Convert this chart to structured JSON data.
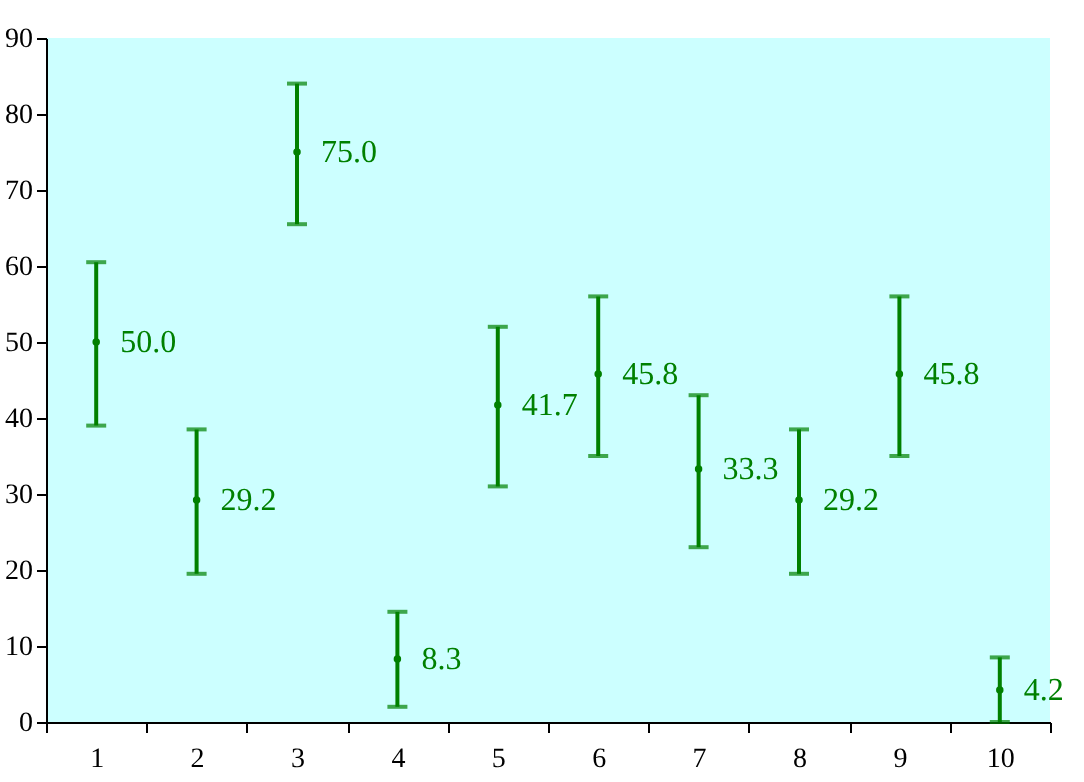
{
  "chart_data": {
    "type": "scatter",
    "categories": [
      "1",
      "2",
      "3",
      "4",
      "5",
      "6",
      "7",
      "8",
      "9",
      "10"
    ],
    "series": [
      {
        "color": "#008000",
        "values": [
          50.0,
          29.2,
          75.0,
          8.3,
          41.7,
          45.8,
          33.3,
          29.2,
          45.8,
          4.2
        ],
        "errors": [
          [
            39,
            60.5
          ],
          [
            19.5,
            38.5
          ],
          [
            65.5,
            84
          ],
          [
            2,
            14.5
          ],
          [
            31,
            52
          ],
          [
            35,
            56
          ],
          [
            23,
            43
          ],
          [
            19.5,
            38.5
          ],
          [
            35,
            56
          ],
          [
            0,
            8.5
          ]
        ],
        "value_labels": [
          "50.0",
          "29.2",
          "75.0",
          "8.3",
          "41.7",
          "45.8",
          "33.3",
          "29.2",
          "45.8",
          "4.2"
        ]
      }
    ],
    "ylim": [
      0,
      90
    ],
    "yticks": [
      0,
      10,
      20,
      30,
      40,
      50,
      60,
      70,
      80,
      90
    ],
    "grid": false,
    "marker": "circle"
  }
}
